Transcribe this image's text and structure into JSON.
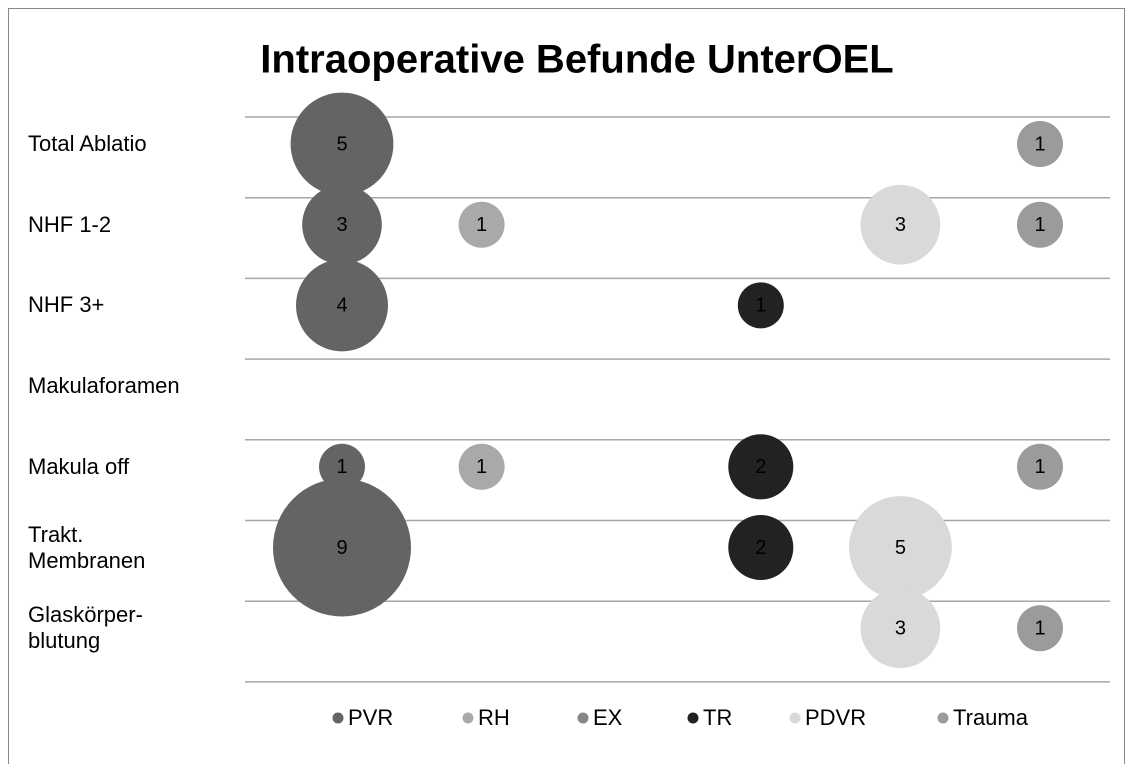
{
  "chart_data": {
    "type": "bubble",
    "title": "Intraoperative Befunde UnterOEL",
    "categories": [
      "Total Ablatio",
      "NHF 1-2",
      "NHF 3+",
      "Makulaforamen",
      "Makula off",
      "Trakt.\nMembranen",
      "Glaskörper-\nblutung"
    ],
    "series": [
      {
        "name": "PVR",
        "color": "#646464",
        "values": [
          5,
          3,
          4,
          null,
          1,
          9,
          null
        ]
      },
      {
        "name": "RH",
        "color": "#a9a9a9",
        "values": [
          null,
          1,
          null,
          null,
          1,
          null,
          null
        ]
      },
      {
        "name": "EX",
        "color": "#878787",
        "values": [
          null,
          null,
          null,
          null,
          null,
          null,
          null
        ]
      },
      {
        "name": "TR",
        "color": "#222222",
        "values": [
          null,
          null,
          1,
          null,
          2,
          2,
          null
        ]
      },
      {
        "name": "PDVR",
        "color": "#d9d9d9",
        "values": [
          null,
          3,
          null,
          null,
          null,
          5,
          3
        ]
      },
      {
        "name": "Trauma",
        "color": "#9b9b9b",
        "values": [
          1,
          1,
          null,
          null,
          1,
          null,
          1
        ]
      }
    ],
    "grid": true,
    "legend": "bottom"
  }
}
